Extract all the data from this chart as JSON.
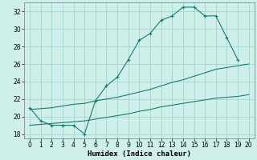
{
  "xlabel": "Humidex (Indice chaleur)",
  "bg_color": "#cff0ea",
  "grid_color": "#aad8d2",
  "line_color": "#1a7a6e",
  "xlim": [
    -0.5,
    20.5
  ],
  "ylim": [
    17.5,
    33.0
  ],
  "xticks": [
    0,
    1,
    2,
    3,
    4,
    5,
    6,
    7,
    8,
    9,
    10,
    11,
    12,
    13,
    14,
    15,
    16,
    17,
    18,
    19,
    20
  ],
  "yticks": [
    18,
    20,
    22,
    24,
    26,
    28,
    30,
    32
  ],
  "line1_x": [
    0,
    1,
    2,
    3,
    4,
    5,
    6,
    7,
    8,
    9,
    10,
    11,
    12,
    13,
    14,
    15,
    16,
    17,
    18,
    19
  ],
  "line1_y": [
    21.0,
    19.5,
    19.0,
    19.0,
    19.0,
    18.0,
    21.8,
    23.5,
    24.5,
    26.5,
    28.7,
    29.5,
    31.0,
    31.5,
    32.5,
    32.5,
    31.5,
    31.5,
    29.0,
    26.5
  ],
  "line2_x": [
    0,
    1,
    2,
    3,
    4,
    5,
    6,
    7,
    8,
    9,
    10,
    11,
    12,
    13,
    14,
    15,
    16,
    17,
    18,
    19,
    20
  ],
  "line2_y": [
    20.8,
    20.9,
    21.0,
    21.2,
    21.4,
    21.5,
    21.8,
    22.0,
    22.2,
    22.5,
    22.8,
    23.1,
    23.5,
    23.9,
    24.2,
    24.6,
    25.0,
    25.4,
    25.6,
    25.8,
    26.0
  ],
  "line3_x": [
    0,
    1,
    2,
    3,
    4,
    5,
    6,
    7,
    8,
    9,
    10,
    11,
    12,
    13,
    14,
    15,
    16,
    17,
    18,
    19,
    20
  ],
  "line3_y": [
    19.0,
    19.1,
    19.2,
    19.3,
    19.4,
    19.5,
    19.7,
    19.9,
    20.1,
    20.3,
    20.6,
    20.8,
    21.1,
    21.3,
    21.5,
    21.7,
    21.9,
    22.1,
    22.2,
    22.3,
    22.5
  ]
}
